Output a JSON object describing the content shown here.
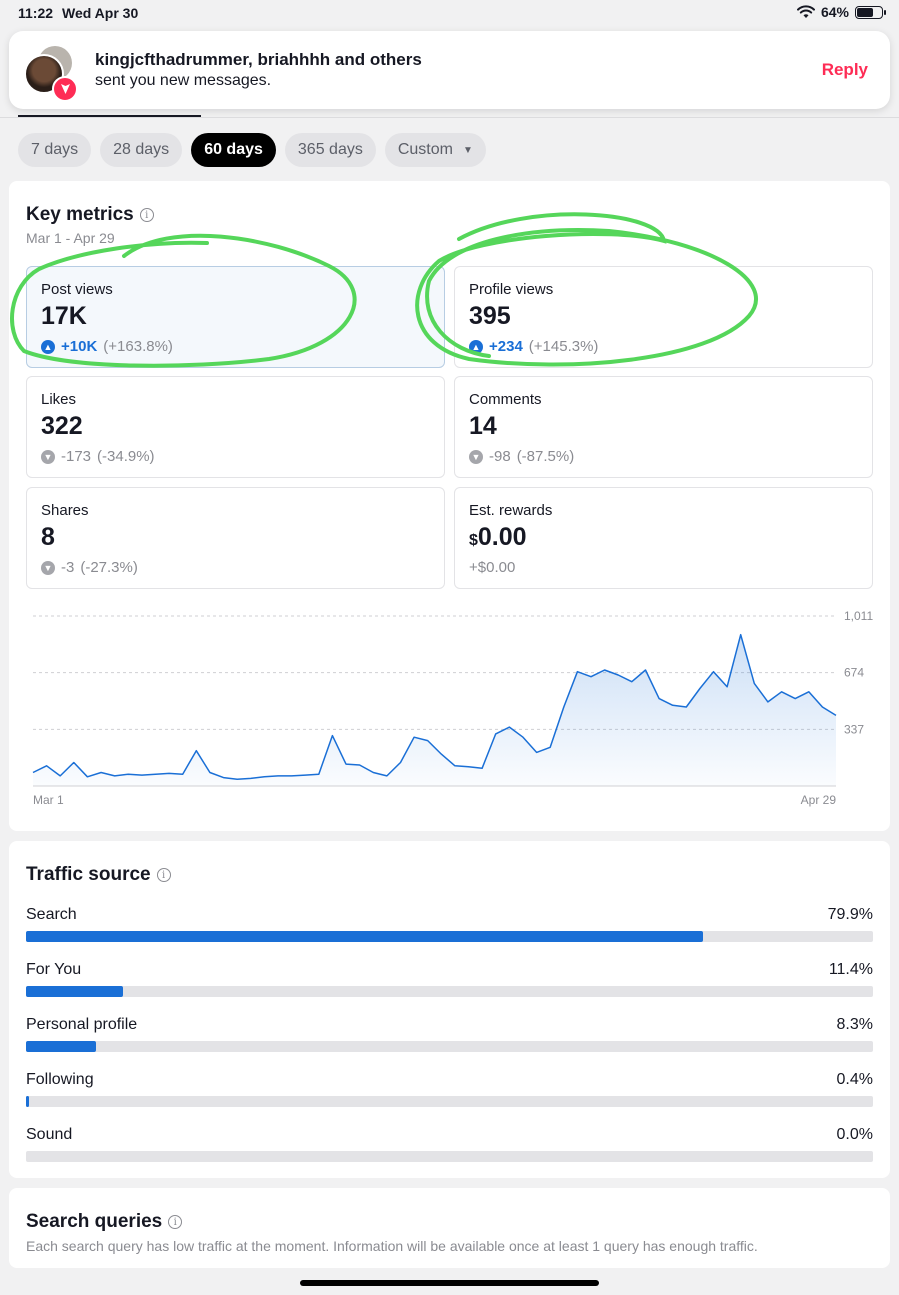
{
  "status_bar": {
    "time": "11:22",
    "date": "Wed Apr 30",
    "battery": "64%",
    "battery_level": 0.64
  },
  "notification": {
    "line1": "kingjcfthadrummer, briahhhh and others",
    "line2": "sent you new messages.",
    "action": "Reply",
    "badge_icon": "send-icon"
  },
  "range_tabs": [
    {
      "label": "7 days"
    },
    {
      "label": "28 days"
    },
    {
      "label": "60 days",
      "active": true
    },
    {
      "label": "365 days"
    },
    {
      "label": "Custom"
    }
  ],
  "key_metrics": {
    "title": "Key metrics",
    "date_range": "Mar 1 - Apr 29",
    "cards": [
      {
        "label": "Post views",
        "value": "17K",
        "delta": "+10K",
        "pct": "(+163.8%)",
        "direction": "up"
      },
      {
        "label": "Profile views",
        "value": "395",
        "delta": "+234",
        "pct": "(+145.3%)",
        "direction": "up"
      },
      {
        "label": "Likes",
        "value": "322",
        "delta": "-173",
        "pct": "(-34.9%)",
        "direction": "down"
      },
      {
        "label": "Comments",
        "value": "14",
        "delta": "-98",
        "pct": "(-87.5%)",
        "direction": "down"
      },
      {
        "label": "Shares",
        "value": "8",
        "delta": "-3",
        "pct": "(-27.3%)",
        "direction": "down"
      },
      {
        "label": "Est. rewards",
        "value_symbol": "$",
        "value": "0.00",
        "delta": "+$0.00",
        "pct": "",
        "direction": "none"
      }
    ]
  },
  "chart_data": {
    "type": "area",
    "x_start_label": "Mar 1",
    "x_end_label": "Apr 29",
    "y_ticks": [
      {
        "value": 1011,
        "label": "1,011"
      },
      {
        "value": 674,
        "label": "674"
      },
      {
        "value": 337,
        "label": "337"
      }
    ],
    "ylim": [
      0,
      1011
    ],
    "color": "#1a6fd6",
    "values": [
      80,
      120,
      60,
      140,
      55,
      80,
      60,
      70,
      65,
      70,
      75,
      70,
      210,
      80,
      50,
      40,
      45,
      55,
      60,
      60,
      65,
      70,
      300,
      130,
      125,
      80,
      60,
      140,
      290,
      270,
      190,
      120,
      115,
      105,
      310,
      350,
      290,
      200,
      230,
      470,
      680,
      650,
      690,
      660,
      620,
      690,
      520,
      480,
      470,
      580,
      680,
      590,
      900,
      610,
      500,
      560,
      520,
      560,
      470,
      420
    ]
  },
  "traffic_source": {
    "title": "Traffic source",
    "rows": [
      {
        "label": "Search",
        "pct": "79.9%",
        "value": 79.9
      },
      {
        "label": "For You",
        "pct": "11.4%",
        "value": 11.4
      },
      {
        "label": "Personal profile",
        "pct": "8.3%",
        "value": 8.3
      },
      {
        "label": "Following",
        "pct": "0.4%",
        "value": 0.4
      },
      {
        "label": "Sound",
        "pct": "0.0%",
        "value": 0.0
      }
    ]
  },
  "search_queries": {
    "title": "Search queries",
    "description": "Each search query has low traffic at the moment. Information will be available once at least 1 query has enough traffic."
  },
  "annotation_color": "#55d65a"
}
